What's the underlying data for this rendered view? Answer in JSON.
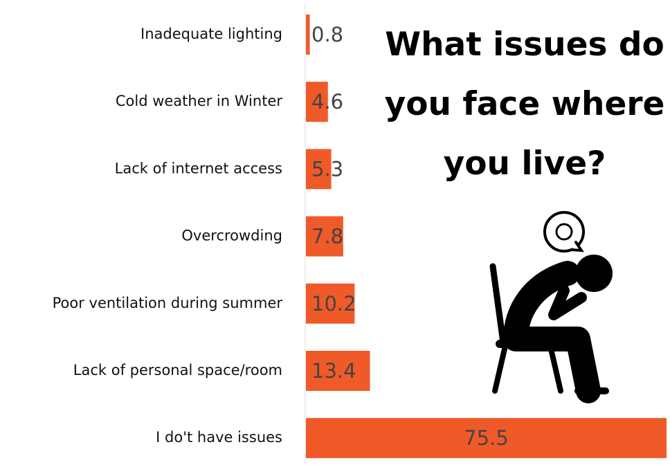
{
  "chart_data": {
    "type": "bar",
    "orientation": "horizontal",
    "title": "What issues do you face where you live?",
    "categories": [
      "Inadequate lighting",
      "Cold weather in Winter",
      "Lack of internet access",
      "Overcrowding",
      "Poor ventilation during summer",
      "Lack of personal space/room",
      "I do't have issues"
    ],
    "values": [
      0.8,
      4.6,
      5.3,
      7.8,
      10.2,
      13.4,
      75.5
    ],
    "color": "#f05a28"
  }
}
